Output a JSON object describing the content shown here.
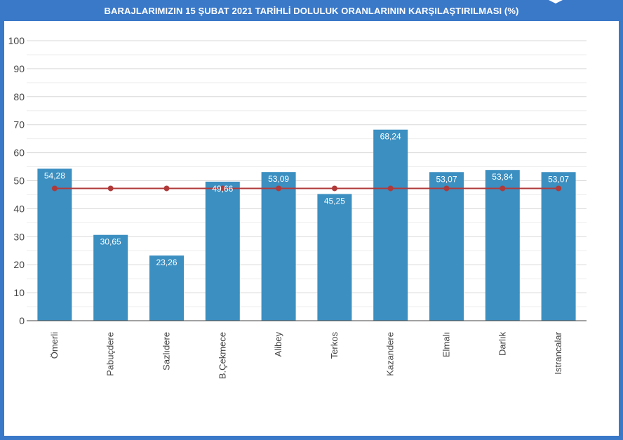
{
  "colors": {
    "frame": "#3a78c8",
    "bar": "#3b8fc1",
    "average_line": "#b03a3a",
    "grid": "#d9d9d9",
    "minor_grid": "#eeeeee",
    "axis": "#444444"
  },
  "chart_data": {
    "type": "bar",
    "title": "BARAJLARIMIZIN 15 ŞUBAT 2021 TARİHLİ DOLULUK ORANLARININ KARŞILAŞTIRILMASI (%)",
    "categories": [
      "Ömerli",
      "Pabuçdere",
      "Sazlıdere",
      "B.Çekmece",
      "Alibey",
      "Terkos",
      "Kazandere",
      "Elmalı",
      "Darlık",
      "Istrancalar"
    ],
    "series": [
      {
        "values": [
          54.28,
          30.65,
          23.26,
          49.66,
          53.09,
          45.25,
          68.24,
          53.07,
          53.84,
          53.07
        ],
        "data_labels": [
          "54,28",
          "30,65",
          "23,26",
          "49,66",
          "53,09",
          "45,25",
          "68,24",
          "53,07",
          "53,84",
          "53,07"
        ]
      },
      {
        "type": "line",
        "values": [
          47.25,
          47.25,
          47.25,
          47.25,
          47.25,
          47.25,
          47.25,
          47.25,
          47.25,
          47.25
        ]
      }
    ],
    "ylim": [
      0,
      100
    ],
    "yticks": [
      "0",
      "10",
      "20",
      "30",
      "40",
      "50",
      "60",
      "70",
      "80",
      "90",
      "100"
    ],
    "xlabel": "",
    "ylabel": "",
    "grid": true,
    "legend": "none"
  }
}
